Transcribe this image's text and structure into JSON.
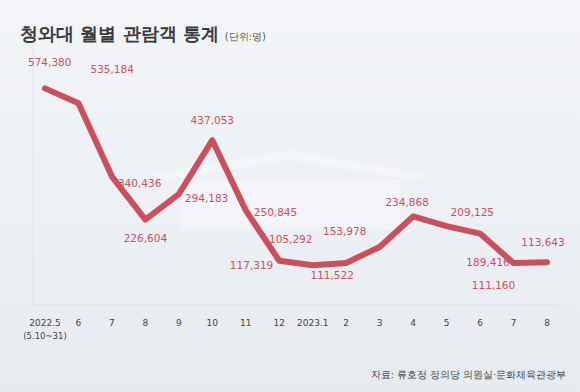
{
  "chart_data": {
    "type": "line",
    "title": "청와대 월별 관람객 통계",
    "subtitle": "(단위:명)",
    "annotations": [
      "(5.10~31)"
    ],
    "source": "자료: 류호정 정의당 의원실·문화체육관광부",
    "categories": [
      "2022.5",
      "6",
      "7",
      "8",
      "9",
      "10",
      "11",
      "12",
      "2023.1",
      "2",
      "3",
      "4",
      "5",
      "6",
      "7",
      "8"
    ],
    "values": [
      574380,
      535184,
      340436,
      226604,
      294183,
      437053,
      250845,
      117319,
      105292,
      111522,
      153978,
      234868,
      209125,
      189416,
      111160,
      113643
    ],
    "value_labels": [
      "574,380",
      "535,184",
      "340,436",
      "226,604",
      "294,183",
      "437,053",
      "250,845",
      "117,319",
      "105,292",
      "111,522",
      "153,978",
      "234,868",
      "209,125",
      "189,416",
      "111,160",
      "113,643"
    ],
    "color": "#c9505e",
    "ylim": [
      0,
      700000
    ],
    "yticks": [],
    "grid": false,
    "data_labels": true,
    "tick_labels": "x"
  }
}
